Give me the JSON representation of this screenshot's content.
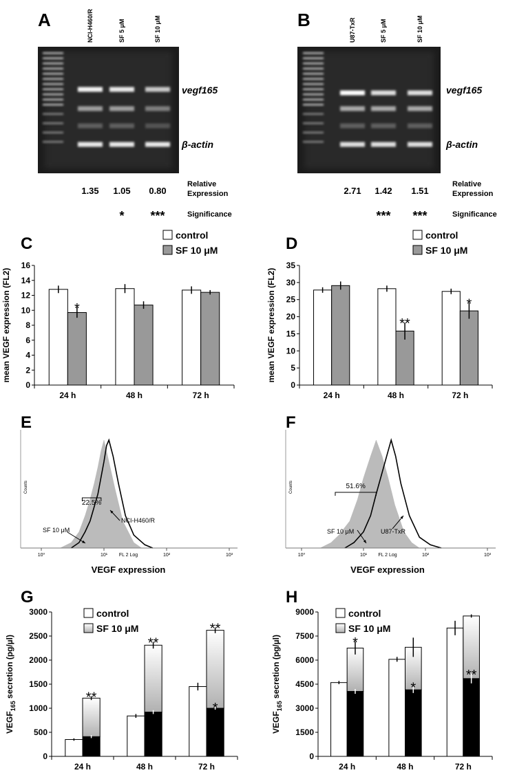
{
  "gels": [
    {
      "panel": "A",
      "lanes": [
        "NCI-H460/R",
        "SF 5 μM",
        "SF 10 μM"
      ],
      "band_labels": [
        "vegf165",
        "β-actin"
      ],
      "row_label": [
        "Relative",
        "Expression"
      ],
      "relative_expression": [
        "1.35",
        "1.05",
        "0.80"
      ],
      "significance_label": "Significance",
      "significance": [
        null,
        "*",
        "***"
      ]
    },
    {
      "panel": "B",
      "lanes": [
        "U87-TxR",
        "SF 5 μM",
        "SF 10 μM"
      ],
      "band_labels": [
        "vegf165",
        "β-actin"
      ],
      "row_label": [
        "Relative",
        "Expression"
      ],
      "relative_expression": [
        "2.71",
        "1.42",
        "1.51"
      ],
      "significance_label": "Significance",
      "significance": [
        null,
        "***",
        "***"
      ]
    }
  ],
  "chart_data": [
    {
      "type": "bar",
      "panel": "C",
      "y_label": "mean VEGF expression (FL2)",
      "categories": [
        "24 h",
        "48 h",
        "72 h"
      ],
      "ylim": [
        0,
        16
      ],
      "yticks": [
        0,
        2,
        4,
        6,
        8,
        10,
        12,
        14,
        16
      ],
      "series": [
        {
          "name": "control",
          "color": "#ffffff",
          "values": [
            12.8,
            12.9,
            12.7
          ],
          "errors": [
            0.5,
            0.6,
            0.5
          ]
        },
        {
          "name": "SF 10 μM",
          "color": "#999999",
          "values": [
            9.7,
            10.7,
            12.4
          ],
          "errors": [
            0.7,
            0.5,
            0.3
          ],
          "significance": [
            "*",
            null,
            null
          ]
        }
      ]
    },
    {
      "type": "bar",
      "panel": "D",
      "y_label": "mean VEGF expression (FL2)",
      "categories": [
        "24 h",
        "48 h",
        "72 h"
      ],
      "ylim": [
        0,
        35
      ],
      "yticks": [
        0,
        5,
        10,
        15,
        20,
        25,
        30,
        35
      ],
      "series": [
        {
          "name": "control",
          "color": "#ffffff",
          "values": [
            27.8,
            28.2,
            27.4
          ],
          "errors": [
            0.8,
            0.9,
            0.8
          ]
        },
        {
          "name": "SF 10 μM",
          "color": "#999999",
          "values": [
            29.1,
            15.8,
            21.7
          ],
          "errors": [
            1.2,
            2.5,
            2.3
          ],
          "significance": [
            null,
            "**",
            "*"
          ]
        }
      ]
    },
    {
      "type": "flow_histogram",
      "panel": "E",
      "y_label": "Counts",
      "x_axis_name": "FL 2 Log",
      "x_label": "VEGF expression",
      "log_x": true,
      "xlim": [
        1,
        1000
      ],
      "xticks": [
        {
          "value": 1,
          "label": "10⁰"
        },
        {
          "value": 10,
          "label": "10¹"
        },
        {
          "value": 100,
          "label": "10²"
        },
        {
          "value": 1000,
          "label": "10³"
        }
      ],
      "ylim": [
        0,
        100
      ],
      "series": [
        {
          "name": "SF 10 μM",
          "color": "#bbbbbb",
          "fill": true,
          "x": [
            2,
            3,
            4,
            5,
            6,
            7,
            8,
            9,
            10,
            12,
            15,
            20,
            30,
            40
          ],
          "values": [
            0,
            5,
            15,
            30,
            45,
            60,
            75,
            90,
            100,
            80,
            55,
            25,
            5,
            0
          ]
        },
        {
          "name": "NCI-H460/R",
          "color": "#000000",
          "fill": false,
          "x": [
            3,
            4,
            5,
            6,
            8,
            10,
            11,
            12,
            14,
            17,
            22,
            30,
            45,
            60
          ],
          "values": [
            0,
            5,
            15,
            25,
            50,
            80,
            95,
            100,
            85,
            60,
            30,
            12,
            3,
            0
          ]
        }
      ],
      "gate": {
        "label": "22.5%",
        "x": [
          4.5,
          9
        ]
      }
    },
    {
      "type": "flow_histogram",
      "panel": "F",
      "y_label": "Counts",
      "x_axis_name": "FL 2 Log",
      "x_label": "VEGF expression",
      "log_x": true,
      "xlim": [
        1,
        1000
      ],
      "xticks": [
        {
          "value": 1,
          "label": "10⁰"
        },
        {
          "value": 10,
          "label": "10¹"
        },
        {
          "value": 100,
          "label": "10²"
        },
        {
          "value": 1000,
          "label": "10³"
        }
      ],
      "ylim": [
        0,
        100
      ],
      "series": [
        {
          "name": "SF 10 μM",
          "color": "#bbbbbb",
          "fill": true,
          "x": [
            2,
            3,
            4,
            6,
            8,
            10,
            13,
            16,
            20,
            25,
            32,
            45,
            60,
            80
          ],
          "values": [
            0,
            5,
            12,
            25,
            45,
            65,
            85,
            100,
            85,
            65,
            40,
            15,
            5,
            0
          ]
        },
        {
          "name": "U87-TxR",
          "color": "#000000",
          "fill": false,
          "x": [
            5,
            7,
            10,
            13,
            16,
            20,
            25,
            28,
            33,
            40,
            55,
            80,
            120,
            180
          ],
          "values": [
            0,
            5,
            15,
            30,
            50,
            70,
            90,
            100,
            85,
            60,
            30,
            10,
            3,
            0
          ]
        }
      ],
      "gate": {
        "label": "51.6%",
        "x": [
          3.5,
          16
        ]
      }
    },
    {
      "type": "bar",
      "panel": "G",
      "y_label": {
        "main": "VEGF",
        "sub": "165",
        "rest": " secretion (pg/µl)"
      },
      "categories": [
        "24 h",
        "48 h",
        "72 h"
      ],
      "ylim": [
        0,
        3000
      ],
      "yticks": [
        0,
        500,
        1000,
        1500,
        2000,
        2500,
        3000
      ],
      "series": [
        {
          "name": "control",
          "color": "#ffffff",
          "values": [
            350,
            840,
            1450
          ],
          "errors": [
            25,
            40,
            80
          ]
        },
        {
          "color": "#000000",
          "values": [
            410,
            920,
            1000
          ],
          "errors": [
            30,
            40,
            30
          ],
          "significance": [
            null,
            null,
            "*"
          ]
        },
        {
          "name": "SF 10 μM",
          "color": "#b0b0b0",
          "gradient": true,
          "stacked_on_previous": true,
          "values": [
            800,
            1390,
            1620
          ],
          "errors": [
            40,
            70,
            60
          ],
          "significance": [
            "**",
            "**",
            "**"
          ]
        }
      ]
    },
    {
      "type": "bar",
      "panel": "H",
      "y_label": {
        "main": "VEGF",
        "sub": "165",
        "rest": " secretion (pg/µl)"
      },
      "categories": [
        "24 h",
        "48 h",
        "72 h"
      ],
      "ylim": [
        0,
        9000
      ],
      "yticks": [
        0,
        1500,
        3000,
        4500,
        6000,
        7500,
        9000
      ],
      "series": [
        {
          "name": "control",
          "color": "#ffffff",
          "values": [
            4600,
            6050,
            8000
          ],
          "errors": [
            100,
            150,
            450
          ]
        },
        {
          "color": "#000000",
          "values": [
            4050,
            4150,
            4850
          ],
          "errors": [
            150,
            200,
            300
          ],
          "significance": [
            null,
            "*",
            "**"
          ]
        },
        {
          "name": "SF 10 μM",
          "color": "#b0b0b0",
          "gradient": true,
          "stacked_on_previous": true,
          "values": [
            2700,
            2650,
            3900
          ],
          "errors": [
            400,
            600,
            100
          ],
          "significance": [
            "*",
            null,
            null
          ]
        }
      ]
    }
  ]
}
